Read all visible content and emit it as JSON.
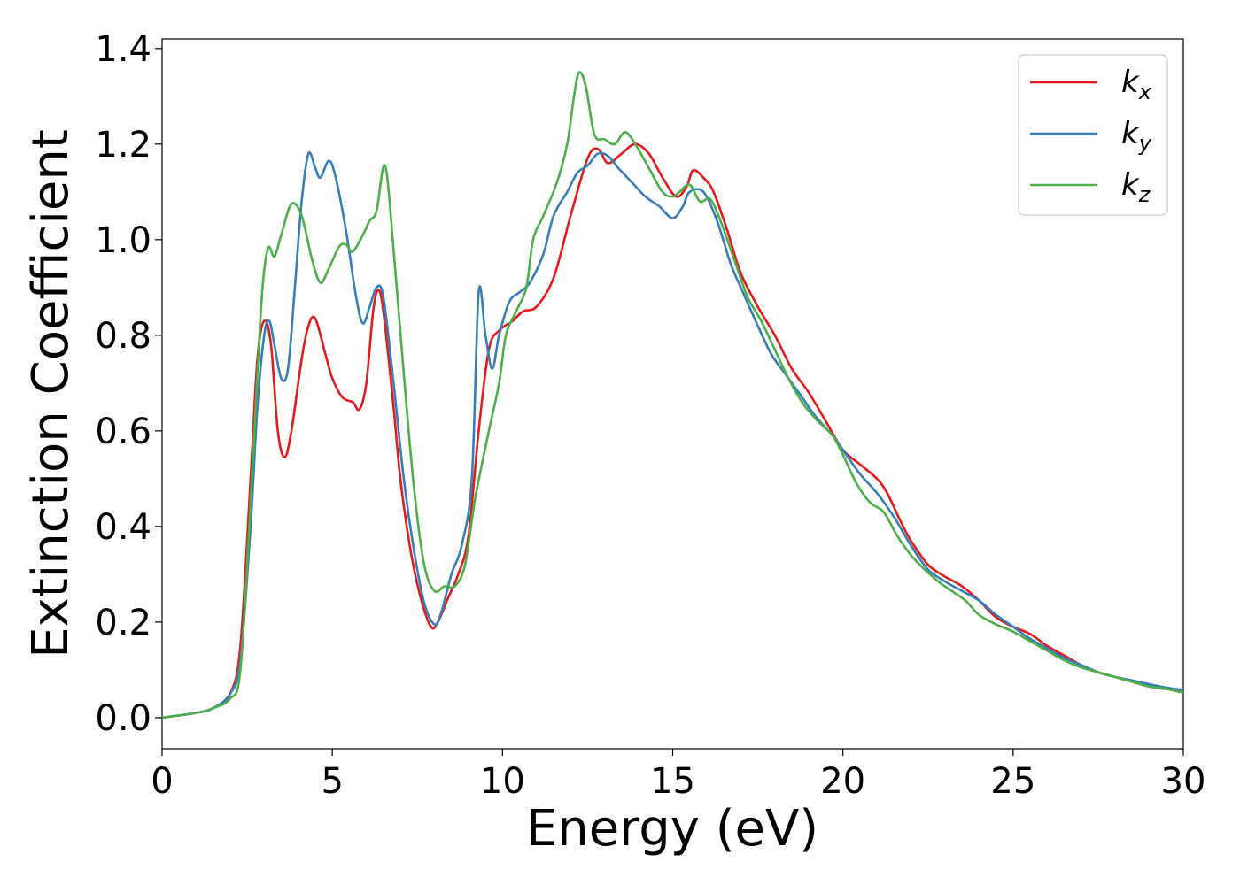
{
  "chart_data": {
    "type": "line",
    "xlabel": "Energy (eV)",
    "ylabel": "Extinction Coefficient",
    "xlim": [
      0,
      30
    ],
    "ylim": [
      -0.065,
      1.42
    ],
    "xticks": [
      0,
      5,
      10,
      15,
      20,
      25,
      30
    ],
    "xtick_labels": [
      "0",
      "5",
      "10",
      "15",
      "20",
      "25",
      "30"
    ],
    "yticks": [
      0.0,
      0.2,
      0.4,
      0.6,
      0.8,
      1.0,
      1.2,
      1.4
    ],
    "ytick_labels": [
      "0.0",
      "0.2",
      "0.4",
      "0.6",
      "0.8",
      "1.0",
      "1.2",
      "1.4"
    ],
    "grid": false,
    "legend_position": "top-right",
    "series": [
      {
        "name": "k",
        "subscript": "x",
        "color": "#e41a1c",
        "points": [
          [
            0,
            0.0
          ],
          [
            1,
            0.01
          ],
          [
            1.5,
            0.02
          ],
          [
            2,
            0.05
          ],
          [
            2.3,
            0.15
          ],
          [
            2.6,
            0.5
          ],
          [
            2.8,
            0.75
          ],
          [
            3.0,
            0.83
          ],
          [
            3.2,
            0.78
          ],
          [
            3.4,
            0.6
          ],
          [
            3.6,
            0.545
          ],
          [
            3.8,
            0.6
          ],
          [
            4.1,
            0.75
          ],
          [
            4.3,
            0.82
          ],
          [
            4.5,
            0.835
          ],
          [
            4.8,
            0.76
          ],
          [
            5.0,
            0.71
          ],
          [
            5.3,
            0.67
          ],
          [
            5.6,
            0.66
          ],
          [
            5.8,
            0.645
          ],
          [
            6.0,
            0.7
          ],
          [
            6.2,
            0.85
          ],
          [
            6.35,
            0.895
          ],
          [
            6.5,
            0.85
          ],
          [
            6.8,
            0.65
          ],
          [
            7.0,
            0.5
          ],
          [
            7.3,
            0.35
          ],
          [
            7.6,
            0.25
          ],
          [
            7.9,
            0.19
          ],
          [
            8.1,
            0.2
          ],
          [
            8.4,
            0.25
          ],
          [
            8.7,
            0.3
          ],
          [
            9.0,
            0.38
          ],
          [
            9.3,
            0.6
          ],
          [
            9.6,
            0.77
          ],
          [
            9.9,
            0.81
          ],
          [
            10.3,
            0.83
          ],
          [
            10.6,
            0.85
          ],
          [
            11.0,
            0.86
          ],
          [
            11.5,
            0.92
          ],
          [
            12.0,
            1.05
          ],
          [
            12.5,
            1.17
          ],
          [
            12.8,
            1.19
          ],
          [
            13.1,
            1.16
          ],
          [
            13.5,
            1.18
          ],
          [
            13.9,
            1.2
          ],
          [
            14.3,
            1.18
          ],
          [
            14.7,
            1.13
          ],
          [
            15.1,
            1.09
          ],
          [
            15.4,
            1.11
          ],
          [
            15.6,
            1.145
          ],
          [
            15.9,
            1.13
          ],
          [
            16.2,
            1.1
          ],
          [
            16.6,
            1.02
          ],
          [
            17.0,
            0.93
          ],
          [
            17.5,
            0.86
          ],
          [
            18.0,
            0.8
          ],
          [
            18.5,
            0.73
          ],
          [
            19.0,
            0.68
          ],
          [
            19.5,
            0.62
          ],
          [
            20.0,
            0.56
          ],
          [
            20.5,
            0.53
          ],
          [
            21.0,
            0.5
          ],
          [
            21.3,
            0.47
          ],
          [
            21.7,
            0.41
          ],
          [
            22.0,
            0.37
          ],
          [
            22.5,
            0.32
          ],
          [
            23.0,
            0.295
          ],
          [
            23.5,
            0.275
          ],
          [
            24.0,
            0.245
          ],
          [
            24.5,
            0.21
          ],
          [
            25.0,
            0.19
          ],
          [
            25.5,
            0.175
          ],
          [
            26.0,
            0.15
          ],
          [
            26.5,
            0.13
          ],
          [
            27.0,
            0.11
          ],
          [
            27.5,
            0.095
          ],
          [
            28.0,
            0.085
          ],
          [
            28.5,
            0.075
          ],
          [
            29.0,
            0.065
          ],
          [
            29.5,
            0.06
          ],
          [
            30.0,
            0.055
          ]
        ]
      },
      {
        "name": "k",
        "subscript": "y",
        "color": "#377eb8",
        "points": [
          [
            0,
            0.0
          ],
          [
            1,
            0.01
          ],
          [
            1.5,
            0.02
          ],
          [
            2,
            0.05
          ],
          [
            2.3,
            0.12
          ],
          [
            2.6,
            0.4
          ],
          [
            2.8,
            0.65
          ],
          [
            3.0,
            0.8
          ],
          [
            3.15,
            0.83
          ],
          [
            3.3,
            0.78
          ],
          [
            3.5,
            0.71
          ],
          [
            3.7,
            0.73
          ],
          [
            3.9,
            0.9
          ],
          [
            4.1,
            1.08
          ],
          [
            4.3,
            1.18
          ],
          [
            4.5,
            1.15
          ],
          [
            4.65,
            1.13
          ],
          [
            4.9,
            1.165
          ],
          [
            5.1,
            1.13
          ],
          [
            5.4,
            1.02
          ],
          [
            5.7,
            0.88
          ],
          [
            5.9,
            0.825
          ],
          [
            6.1,
            0.86
          ],
          [
            6.3,
            0.9
          ],
          [
            6.5,
            0.88
          ],
          [
            6.8,
            0.7
          ],
          [
            7.1,
            0.5
          ],
          [
            7.4,
            0.35
          ],
          [
            7.7,
            0.24
          ],
          [
            8.0,
            0.195
          ],
          [
            8.2,
            0.22
          ],
          [
            8.5,
            0.3
          ],
          [
            8.8,
            0.36
          ],
          [
            9.1,
            0.5
          ],
          [
            9.3,
            0.89
          ],
          [
            9.5,
            0.8
          ],
          [
            9.7,
            0.73
          ],
          [
            9.9,
            0.8
          ],
          [
            10.2,
            0.87
          ],
          [
            10.5,
            0.89
          ],
          [
            10.8,
            0.91
          ],
          [
            11.2,
            0.97
          ],
          [
            11.5,
            1.05
          ],
          [
            11.9,
            1.1
          ],
          [
            12.2,
            1.14
          ],
          [
            12.5,
            1.155
          ],
          [
            12.8,
            1.18
          ],
          [
            13.1,
            1.175
          ],
          [
            13.4,
            1.15
          ],
          [
            13.8,
            1.12
          ],
          [
            14.2,
            1.09
          ],
          [
            14.6,
            1.07
          ],
          [
            15.0,
            1.045
          ],
          [
            15.3,
            1.07
          ],
          [
            15.5,
            1.1
          ],
          [
            15.9,
            1.1
          ],
          [
            16.3,
            1.04
          ],
          [
            16.7,
            0.95
          ],
          [
            17.0,
            0.9
          ],
          [
            17.5,
            0.82
          ],
          [
            17.9,
            0.76
          ],
          [
            18.3,
            0.72
          ],
          [
            18.8,
            0.67
          ],
          [
            19.2,
            0.63
          ],
          [
            19.7,
            0.59
          ],
          [
            20.0,
            0.56
          ],
          [
            20.5,
            0.51
          ],
          [
            21.0,
            0.47
          ],
          [
            21.5,
            0.42
          ],
          [
            22.0,
            0.36
          ],
          [
            22.5,
            0.31
          ],
          [
            23.0,
            0.285
          ],
          [
            23.5,
            0.265
          ],
          [
            24.0,
            0.245
          ],
          [
            24.5,
            0.215
          ],
          [
            25.0,
            0.19
          ],
          [
            25.5,
            0.165
          ],
          [
            26.0,
            0.145
          ],
          [
            26.5,
            0.125
          ],
          [
            27.0,
            0.11
          ],
          [
            27.5,
            0.095
          ],
          [
            28.0,
            0.085
          ],
          [
            28.5,
            0.078
          ],
          [
            29.0,
            0.07
          ],
          [
            29.5,
            0.063
          ],
          [
            30.0,
            0.058
          ]
        ]
      },
      {
        "name": "k",
        "subscript": "z",
        "color": "#4daf4a",
        "points": [
          [
            0,
            0.0
          ],
          [
            1,
            0.01
          ],
          [
            1.5,
            0.02
          ],
          [
            2,
            0.04
          ],
          [
            2.3,
            0.1
          ],
          [
            2.6,
            0.45
          ],
          [
            2.9,
            0.85
          ],
          [
            3.1,
            0.98
          ],
          [
            3.3,
            0.965
          ],
          [
            3.5,
            1.01
          ],
          [
            3.8,
            1.075
          ],
          [
            4.1,
            1.05
          ],
          [
            4.4,
            0.96
          ],
          [
            4.65,
            0.91
          ],
          [
            4.9,
            0.94
          ],
          [
            5.2,
            0.985
          ],
          [
            5.4,
            0.99
          ],
          [
            5.6,
            0.975
          ],
          [
            5.9,
            1.01
          ],
          [
            6.1,
            1.04
          ],
          [
            6.3,
            1.06
          ],
          [
            6.55,
            1.155
          ],
          [
            6.8,
            0.98
          ],
          [
            7.1,
            0.72
          ],
          [
            7.4,
            0.48
          ],
          [
            7.7,
            0.32
          ],
          [
            8.0,
            0.265
          ],
          [
            8.3,
            0.275
          ],
          [
            8.6,
            0.275
          ],
          [
            8.9,
            0.32
          ],
          [
            9.2,
            0.46
          ],
          [
            9.6,
            0.6
          ],
          [
            9.9,
            0.7
          ],
          [
            10.1,
            0.8
          ],
          [
            10.4,
            0.85
          ],
          [
            10.7,
            0.9
          ],
          [
            10.9,
            1.0
          ],
          [
            11.2,
            1.05
          ],
          [
            11.6,
            1.12
          ],
          [
            11.9,
            1.2
          ],
          [
            12.1,
            1.3
          ],
          [
            12.25,
            1.35
          ],
          [
            12.45,
            1.32
          ],
          [
            12.7,
            1.22
          ],
          [
            13.0,
            1.21
          ],
          [
            13.3,
            1.2
          ],
          [
            13.6,
            1.225
          ],
          [
            13.9,
            1.2
          ],
          [
            14.3,
            1.15
          ],
          [
            14.7,
            1.1
          ],
          [
            15.0,
            1.09
          ],
          [
            15.2,
            1.1
          ],
          [
            15.5,
            1.115
          ],
          [
            15.8,
            1.08
          ],
          [
            16.1,
            1.085
          ],
          [
            16.4,
            1.04
          ],
          [
            16.8,
            0.96
          ],
          [
            17.2,
            0.88
          ],
          [
            17.6,
            0.83
          ],
          [
            18.0,
            0.77
          ],
          [
            18.4,
            0.71
          ],
          [
            18.8,
            0.66
          ],
          [
            19.2,
            0.625
          ],
          [
            19.7,
            0.59
          ],
          [
            20.0,
            0.55
          ],
          [
            20.4,
            0.49
          ],
          [
            20.8,
            0.45
          ],
          [
            21.2,
            0.43
          ],
          [
            21.6,
            0.38
          ],
          [
            22.0,
            0.34
          ],
          [
            22.4,
            0.31
          ],
          [
            22.8,
            0.285
          ],
          [
            23.2,
            0.265
          ],
          [
            23.6,
            0.245
          ],
          [
            24.0,
            0.215
          ],
          [
            24.5,
            0.195
          ],
          [
            25.0,
            0.18
          ],
          [
            25.5,
            0.16
          ],
          [
            26.0,
            0.14
          ],
          [
            26.5,
            0.12
          ],
          [
            27.0,
            0.105
          ],
          [
            27.5,
            0.095
          ],
          [
            28.0,
            0.085
          ],
          [
            28.5,
            0.075
          ],
          [
            29.0,
            0.065
          ],
          [
            29.5,
            0.06
          ],
          [
            30.0,
            0.052
          ]
        ]
      }
    ]
  }
}
